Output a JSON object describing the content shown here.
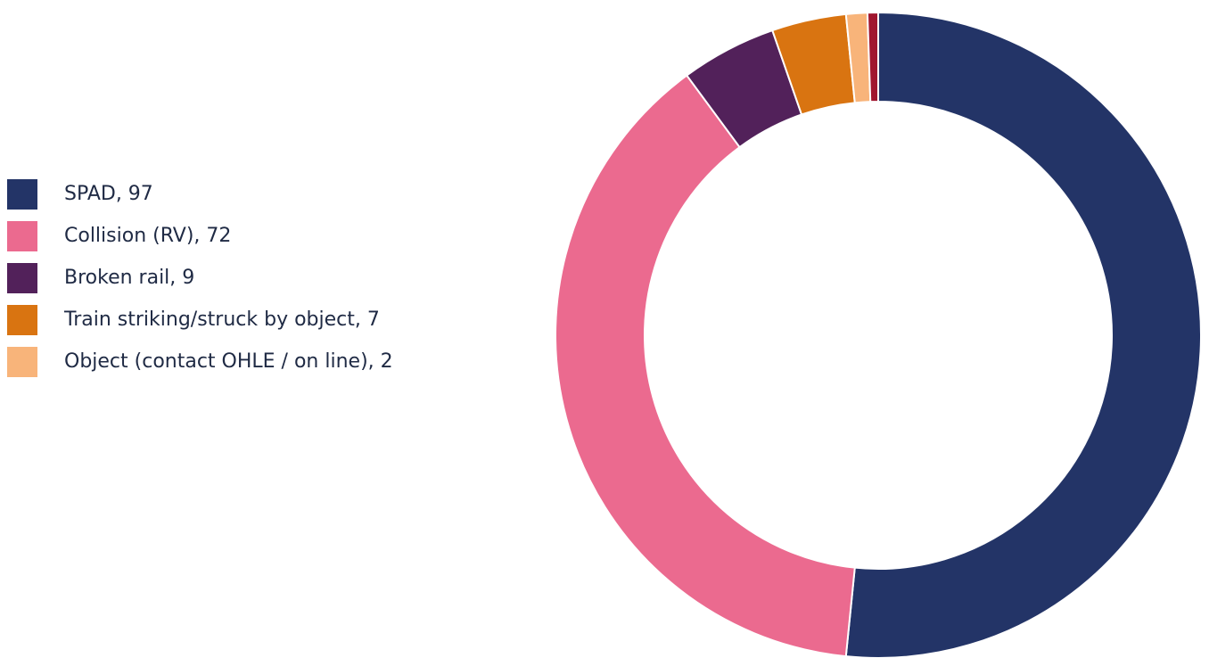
{
  "chart_data": {
    "type": "pie",
    "variant": "donut",
    "title": "",
    "legend_position": "left",
    "slices": [
      {
        "name": "SPAD",
        "value": 97,
        "label": "SPAD, 97",
        "color": "#233467"
      },
      {
        "name": "Collision (RV)",
        "value": 72,
        "label": "Collision (RV), 72",
        "color": "#EB6A8F"
      },
      {
        "name": "Broken rail",
        "value": 9,
        "label": "Broken rail, 9",
        "color": "#52215A"
      },
      {
        "name": "Train striking/struck by object",
        "value": 7,
        "label": "Train striking/struck by object, 7",
        "color": "#D97411"
      },
      {
        "name": "Object (contact OHLE / on line)",
        "value": 2,
        "label": "Object (contact OHLE / on line), 2",
        "color": "#F8B47A"
      },
      {
        "name": "",
        "value": 1,
        "label": "",
        "color": "#A0162F"
      }
    ]
  }
}
